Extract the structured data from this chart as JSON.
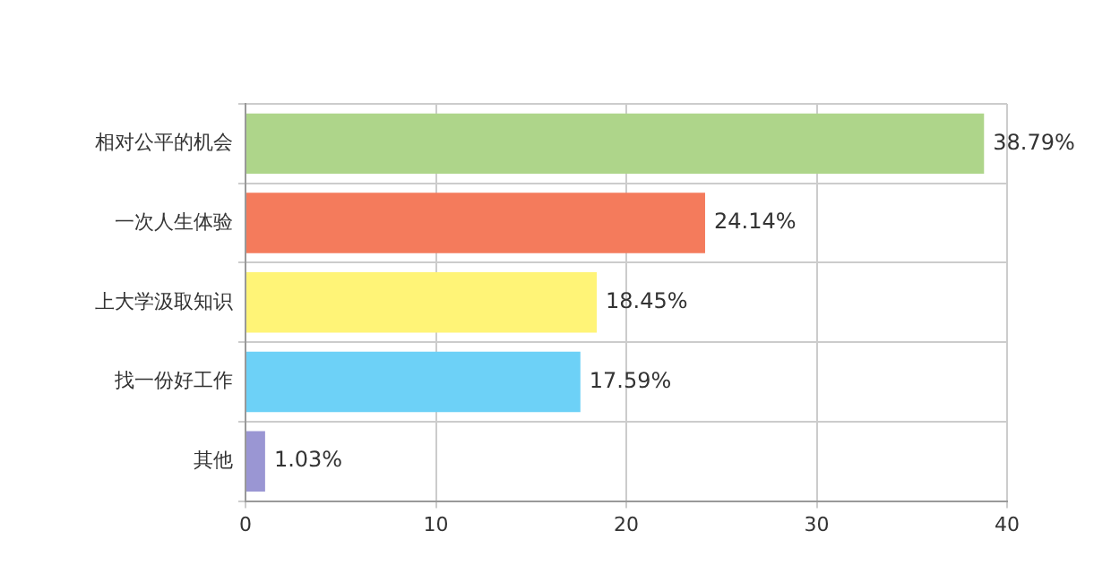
{
  "chart_data": {
    "type": "bar",
    "orientation": "horizontal",
    "categories": [
      "相对公平的机会",
      "一次人生体验",
      "上大学汲取知识",
      "找一份好工作",
      "其他"
    ],
    "values": [
      38.79,
      24.14,
      18.45,
      17.59,
      1.03
    ],
    "colors": [
      "#aed58a",
      "#f47b5c",
      "#fff477",
      "#6dd1f7",
      "#9a96d3"
    ],
    "value_labels": [
      "38.79%",
      "24.14%",
      "18.45%",
      "17.59%",
      "1.03%"
    ],
    "xlim": [
      0,
      40
    ],
    "xticks": [
      0,
      10,
      20,
      30,
      40
    ],
    "grid": true,
    "legend": false
  }
}
